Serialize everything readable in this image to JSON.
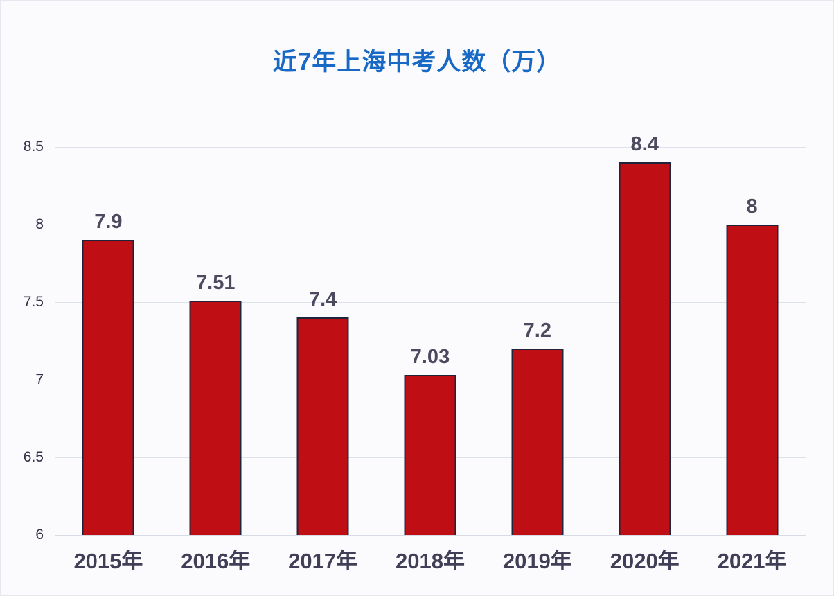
{
  "chart_data": {
    "type": "bar",
    "title": "近7年上海中考人数（万）",
    "categories": [
      "2015年",
      "2016年",
      "2017年",
      "2018年",
      "2019年",
      "2020年",
      "2021年"
    ],
    "values": [
      7.9,
      7.51,
      7.4,
      7.03,
      7.2,
      8.4,
      8
    ],
    "value_labels": [
      "7.9",
      "7.51",
      "7.4",
      "7.03",
      "7.2",
      "8.4",
      "8"
    ],
    "xlabel": "",
    "ylabel": "",
    "ylim": [
      6,
      8.5
    ],
    "ytick_step": 0.5,
    "yticks": [
      "6",
      "6.5",
      "7",
      "7.5",
      "8",
      "8.5"
    ],
    "grid": true,
    "legend": "none",
    "colors": {
      "bar_fill": "#c00f14",
      "bar_border": "#20243a",
      "title": "#1769c5",
      "value_label": "#4c4a5e",
      "xtick_label": "#413f57",
      "ytick_label": "#31314b",
      "gridline": "#dde1e9",
      "axis_line": "#d7dbe4",
      "background": "#fbfbfd"
    }
  }
}
